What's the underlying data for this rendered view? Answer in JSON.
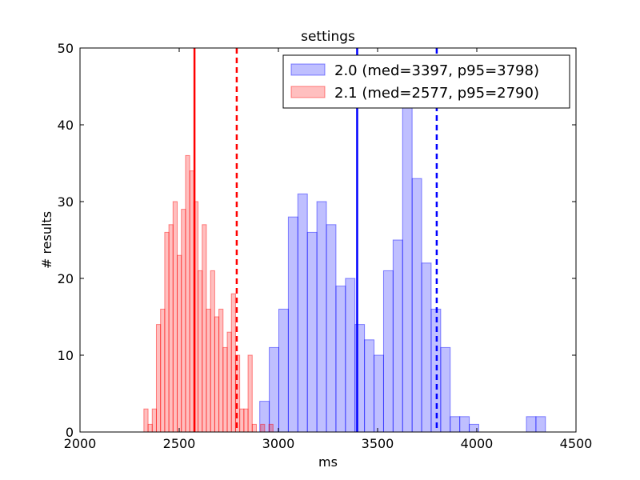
{
  "chart_data": {
    "type": "histogram",
    "title": "settings",
    "xlabel": "ms",
    "ylabel": "# results",
    "xlim": [
      2000,
      4500
    ],
    "ylim": [
      0,
      50
    ],
    "xticks": [
      2000,
      2500,
      3000,
      3500,
      4000,
      4500
    ],
    "yticks": [
      0,
      10,
      20,
      30,
      40,
      50
    ],
    "legend_position": "top-right",
    "series": [
      {
        "name": "2.0 (med=3397, p95=3798)",
        "color": "#0000ff",
        "bin_width": 48,
        "bins": [
          [
            2906,
            4
          ],
          [
            2954,
            11
          ],
          [
            3002,
            16
          ],
          [
            3050,
            28
          ],
          [
            3098,
            31
          ],
          [
            3146,
            26
          ],
          [
            3194,
            30
          ],
          [
            3242,
            27
          ],
          [
            3290,
            19
          ],
          [
            3338,
            20
          ],
          [
            3386,
            14
          ],
          [
            3434,
            12
          ],
          [
            3482,
            10
          ],
          [
            3530,
            21
          ],
          [
            3578,
            25
          ],
          [
            3626,
            43
          ],
          [
            3674,
            33
          ],
          [
            3722,
            22
          ],
          [
            3770,
            16
          ],
          [
            3818,
            11
          ],
          [
            3866,
            2
          ],
          [
            3914,
            2
          ],
          [
            3962,
            1
          ],
          [
            4010,
            0
          ],
          [
            4058,
            0
          ],
          [
            4106,
            0
          ],
          [
            4154,
            0
          ],
          [
            4202,
            0
          ],
          [
            4250,
            2
          ],
          [
            4298,
            2
          ]
        ],
        "median": 3397,
        "p95": 3798
      },
      {
        "name": "2.1 (med=2577, p95=2790)",
        "color": "#ff0000",
        "bin_width": 21,
        "bins": [
          [
            2322,
            3
          ],
          [
            2343,
            1
          ],
          [
            2364,
            3
          ],
          [
            2385,
            14
          ],
          [
            2406,
            16
          ],
          [
            2427,
            26
          ],
          [
            2448,
            27
          ],
          [
            2469,
            30
          ],
          [
            2490,
            23
          ],
          [
            2511,
            29
          ],
          [
            2532,
            36
          ],
          [
            2553,
            34
          ],
          [
            2574,
            30
          ],
          [
            2595,
            21
          ],
          [
            2616,
            27
          ],
          [
            2637,
            16
          ],
          [
            2658,
            21
          ],
          [
            2679,
            15
          ],
          [
            2700,
            16
          ],
          [
            2721,
            11
          ],
          [
            2742,
            13
          ],
          [
            2763,
            18
          ],
          [
            2784,
            10
          ],
          [
            2805,
            3
          ],
          [
            2826,
            3
          ],
          [
            2847,
            10
          ],
          [
            2868,
            1
          ],
          [
            2889,
            0
          ],
          [
            2910,
            1
          ],
          [
            2931,
            0
          ],
          [
            2952,
            1
          ],
          [
            2973,
            0
          ],
          [
            2994,
            0
          ],
          [
            3015,
            0
          ]
        ],
        "median": 2577,
        "p95": 2790
      }
    ]
  }
}
